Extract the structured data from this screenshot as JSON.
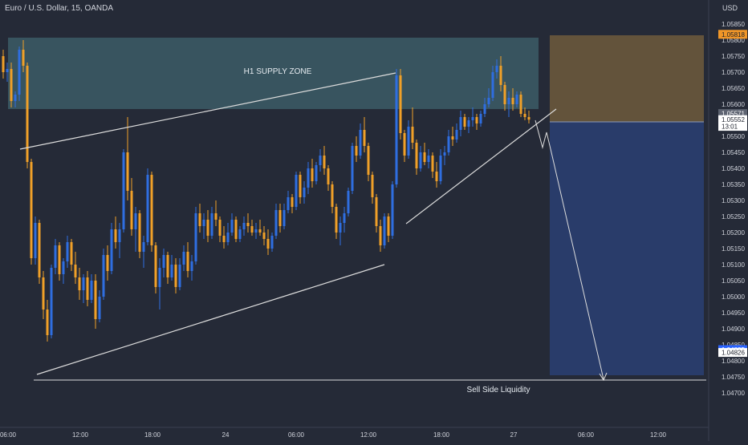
{
  "header": {
    "symbol_title": "Euro / U.S. Dollar, 15, OANDA",
    "currency": "USD"
  },
  "colors": {
    "background": "#252a37",
    "bull_candle": "#2f6ee0",
    "bear_candle": "#f0a028",
    "axis_text": "#d1d4dc",
    "supply_zone": "#3c5c66",
    "stop_zone": "#6e5a3c",
    "target_zone": "#2a3e70",
    "trend_line": "#dcdcdc",
    "price_tag_orange": "#f09628",
    "price_tag_blue": "#2962ff"
  },
  "chart_data": {
    "type": "candlestick",
    "title": "Euro / U.S. Dollar, 15, OANDA",
    "y_axis": {
      "unit": "USD",
      "ticks": [
        "1.05850",
        "1.05800",
        "1.05750",
        "1.05700",
        "1.05650",
        "1.05600",
        "1.05550",
        "1.05500",
        "1.05450",
        "1.05400",
        "1.05350",
        "1.05300",
        "1.05250",
        "1.05200",
        "1.05150",
        "1.05100",
        "1.05050",
        "1.05000",
        "1.04950",
        "1.04900",
        "1.04850",
        "1.04800",
        "1.04750",
        "1.04700"
      ],
      "range": [
        1.0469,
        1.0588
      ]
    },
    "x_axis": {
      "ticks": [
        "06:00",
        "12:00",
        "18:00",
        "24",
        "06:00",
        "12:00",
        "18:00",
        "27",
        "06:00",
        "12:00"
      ]
    },
    "price_labels": [
      {
        "text": "1.05818",
        "value": 1.05818,
        "style": "orange"
      },
      {
        "text": "1.05571",
        "value": 1.05571,
        "style": "gray"
      },
      {
        "text": "1.05552",
        "value": 1.05552,
        "style": "white"
      },
      {
        "text": "13:01",
        "value": 1.05531,
        "style": "countdown"
      },
      {
        "text": "1.04835",
        "value": 1.04835,
        "style": "blue"
      },
      {
        "text": "1.04826",
        "value": 1.04826,
        "style": "white"
      }
    ],
    "annotations": [
      {
        "text": "H1 SUPPLY ZONE",
        "kind": "zone-label"
      },
      {
        "text": "Sell Side Liquidity",
        "kind": "level-label"
      }
    ],
    "zones": [
      {
        "name": "h1-supply-zone",
        "y_top": 1.05818,
        "y_bottom": 1.0561,
        "x_from": 0,
        "x_to": 162
      },
      {
        "name": "stop-loss-zone",
        "y_top": 1.05818,
        "y_bottom": 1.05571,
        "x_from": 165,
        "x_to": 212
      },
      {
        "name": "take-profit-zone",
        "y_top": 1.05571,
        "y_bottom": 1.04835,
        "x_from": 165,
        "x_to": 212
      }
    ],
    "lines": [
      {
        "name": "upper-wedge-line",
        "points": [
          [
            5,
            1.0549
          ],
          [
            119,
            1.0571
          ]
        ]
      },
      {
        "name": "lower-wedge-line",
        "points": [
          [
            10,
            1.0484
          ],
          [
            116,
            1.0516
          ]
        ]
      },
      {
        "name": "rising-trendline",
        "points": [
          [
            122,
            1.0528
          ],
          [
            168,
            1.0561
          ]
        ]
      },
      {
        "name": "sell-side-liquidity-line",
        "points": [
          [
            8,
            1.04826
          ],
          [
            213,
            1.04826
          ]
        ]
      },
      {
        "name": "projection-path",
        "points": [
          [
            163,
            1.0558
          ],
          [
            163.5,
            1.0551
          ],
          [
            164.5,
            1.0556
          ],
          [
            165.5,
            1.055
          ],
          [
            181.5,
            1.04826
          ]
        ]
      }
    ],
    "ohlc": [
      [
        1.0575,
        1.0577,
        1.0568,
        1.057
      ],
      [
        1.057,
        1.0573,
        1.0567,
        1.0571
      ],
      [
        1.0571,
        1.0573,
        1.0559,
        1.0561
      ],
      [
        1.0561,
        1.0564,
        1.0559,
        1.0563
      ],
      [
        1.0563,
        1.0578,
        1.0561,
        1.0577
      ],
      [
        1.0577,
        1.058,
        1.057,
        1.0572
      ],
      [
        1.0572,
        1.0573,
        1.054,
        1.0542
      ],
      [
        1.0542,
        1.0543,
        1.051,
        1.0512
      ],
      [
        1.0512,
        1.0525,
        1.051,
        1.0523
      ],
      [
        1.0523,
        1.0524,
        1.0504,
        1.0506
      ],
      [
        1.0506,
        1.0508,
        1.0493,
        1.0496
      ],
      [
        1.0496,
        1.0499,
        1.0486,
        1.0488
      ],
      [
        1.0488,
        1.051,
        1.0487,
        1.0509
      ],
      [
        1.0509,
        1.0518,
        1.0507,
        1.0516
      ],
      [
        1.0516,
        1.0517,
        1.0505,
        1.0507
      ],
      [
        1.0507,
        1.0512,
        1.0504,
        1.0511
      ],
      [
        1.0511,
        1.0519,
        1.0509,
        1.0517
      ],
      [
        1.0517,
        1.0518,
        1.0508,
        1.051
      ],
      [
        1.051,
        1.0514,
        1.0504,
        1.0506
      ],
      [
        1.0506,
        1.0509,
        1.0499,
        1.0502
      ],
      [
        1.0502,
        1.0507,
        1.0498,
        1.0506
      ],
      [
        1.0506,
        1.0508,
        1.0497,
        1.0499
      ],
      [
        1.0499,
        1.0507,
        1.0498,
        1.0505
      ],
      [
        1.0505,
        1.0507,
        1.049,
        1.0493
      ],
      [
        1.0493,
        1.0502,
        1.0492,
        1.05
      ],
      [
        1.05,
        1.0515,
        1.0499,
        1.0513
      ],
      [
        1.0513,
        1.0516,
        1.0505,
        1.0508
      ],
      [
        1.0508,
        1.0523,
        1.0507,
        1.0521
      ],
      [
        1.0521,
        1.0525,
        1.0515,
        1.0517
      ],
      [
        1.0517,
        1.0523,
        1.0512,
        1.0521
      ],
      [
        1.0521,
        1.0546,
        1.052,
        1.0545
      ],
      [
        1.0545,
        1.0556,
        1.053,
        1.0533
      ],
      [
        1.0533,
        1.0537,
        1.0519,
        1.0521
      ],
      [
        1.0521,
        1.0528,
        1.0514,
        1.0526
      ],
      [
        1.0526,
        1.0527,
        1.0512,
        1.0514
      ],
      [
        1.0514,
        1.0519,
        1.0509,
        1.0517
      ],
      [
        1.0517,
        1.054,
        1.0516,
        1.0538
      ],
      [
        1.0538,
        1.0539,
        1.0514,
        1.0516
      ],
      [
        1.0516,
        1.0517,
        1.0501,
        1.0503
      ],
      [
        1.0503,
        1.0512,
        1.0496,
        1.0509
      ],
      [
        1.0509,
        1.0515,
        1.0506,
        1.0513
      ],
      [
        1.0513,
        1.0514,
        1.0504,
        1.0506
      ],
      [
        1.0506,
        1.0513,
        1.0505,
        1.051
      ],
      [
        1.051,
        1.0512,
        1.0501,
        1.0503
      ],
      [
        1.0503,
        1.0512,
        1.0502,
        1.051
      ],
      [
        1.051,
        1.0516,
        1.0508,
        1.0514
      ],
      [
        1.0514,
        1.0517,
        1.0506,
        1.0508
      ],
      [
        1.0508,
        1.0513,
        1.0505,
        1.0511
      ],
      [
        1.0511,
        1.0528,
        1.051,
        1.0526
      ],
      [
        1.0526,
        1.0529,
        1.052,
        1.0522
      ],
      [
        1.0522,
        1.0526,
        1.0518,
        1.0524
      ],
      [
        1.0524,
        1.0527,
        1.0517,
        1.0519
      ],
      [
        1.0519,
        1.0528,
        1.0518,
        1.0526
      ],
      [
        1.0526,
        1.053,
        1.0522,
        1.0524
      ],
      [
        1.0524,
        1.0525,
        1.0517,
        1.0519
      ],
      [
        1.0519,
        1.0522,
        1.0515,
        1.0517
      ],
      [
        1.0517,
        1.0523,
        1.0516,
        1.052
      ],
      [
        1.052,
        1.0526,
        1.0519,
        1.0524
      ],
      [
        1.0524,
        1.0525,
        1.0517,
        1.0518
      ],
      [
        1.0518,
        1.0522,
        1.0517,
        1.0521
      ],
      [
        1.0521,
        1.0525,
        1.0519,
        1.0523
      ],
      [
        1.0523,
        1.0526,
        1.052,
        1.0522
      ],
      [
        1.0522,
        1.0524,
        1.0519,
        1.052
      ],
      [
        1.052,
        1.0523,
        1.0518,
        1.0521
      ],
      [
        1.0521,
        1.0524,
        1.0519,
        1.052
      ],
      [
        1.052,
        1.0522,
        1.0516,
        1.0518
      ],
      [
        1.0518,
        1.0521,
        1.0513,
        1.0515
      ],
      [
        1.0515,
        1.052,
        1.0514,
        1.0519
      ],
      [
        1.0519,
        1.0529,
        1.0518,
        1.0527
      ],
      [
        1.0527,
        1.0529,
        1.052,
        1.0522
      ],
      [
        1.0522,
        1.0529,
        1.0521,
        1.0527
      ],
      [
        1.0527,
        1.0533,
        1.0526,
        1.0531
      ],
      [
        1.0531,
        1.0532,
        1.0526,
        1.0528
      ],
      [
        1.0528,
        1.0539,
        1.0527,
        1.0538
      ],
      [
        1.0538,
        1.0539,
        1.0529,
        1.0531
      ],
      [
        1.0531,
        1.0536,
        1.0529,
        1.0534
      ],
      [
        1.0534,
        1.0542,
        1.0532,
        1.054
      ],
      [
        1.054,
        1.0543,
        1.0534,
        1.0536
      ],
      [
        1.0536,
        1.0542,
        1.0535,
        1.0541
      ],
      [
        1.0541,
        1.0546,
        1.0539,
        1.0544
      ],
      [
        1.0544,
        1.0547,
        1.0538,
        1.054
      ],
      [
        1.054,
        1.0541,
        1.0533,
        1.0535
      ],
      [
        1.0535,
        1.0536,
        1.0526,
        1.0528
      ],
      [
        1.0528,
        1.0529,
        1.0518,
        1.052
      ],
      [
        1.052,
        1.0525,
        1.0516,
        1.0523
      ],
      [
        1.0523,
        1.0528,
        1.052,
        1.0526
      ],
      [
        1.0526,
        1.0534,
        1.0525,
        1.0533
      ],
      [
        1.0533,
        1.0548,
        1.0532,
        1.0547
      ],
      [
        1.0547,
        1.055,
        1.0542,
        1.0544
      ],
      [
        1.0544,
        1.0554,
        1.0543,
        1.0552
      ],
      [
        1.0552,
        1.0556,
        1.0545,
        1.0547
      ],
      [
        1.0547,
        1.0548,
        1.0536,
        1.0538
      ],
      [
        1.0538,
        1.0539,
        1.0529,
        1.0531
      ],
      [
        1.0531,
        1.0532,
        1.052,
        1.0522
      ],
      [
        1.0522,
        1.0524,
        1.0514,
        1.0516
      ],
      [
        1.0516,
        1.0526,
        1.0515,
        1.0525
      ],
      [
        1.0525,
        1.0526,
        1.0517,
        1.0519
      ],
      [
        1.0519,
        1.0536,
        1.0518,
        1.0535
      ],
      [
        1.0535,
        1.0571,
        1.0534,
        1.0569
      ],
      [
        1.0569,
        1.0571,
        1.0549,
        1.0551
      ],
      [
        1.0551,
        1.0552,
        1.0542,
        1.0544
      ],
      [
        1.0544,
        1.0555,
        1.0543,
        1.0553
      ],
      [
        1.0553,
        1.0559,
        1.0546,
        1.0548
      ],
      [
        1.0548,
        1.0549,
        1.0538,
        1.054
      ],
      [
        1.054,
        1.0547,
        1.0539,
        1.0545
      ],
      [
        1.0545,
        1.0548,
        1.0541,
        1.0542
      ],
      [
        1.0542,
        1.0546,
        1.054,
        1.0544
      ],
      [
        1.0544,
        1.0545,
        1.0537,
        1.0539
      ],
      [
        1.0539,
        1.0542,
        1.0534,
        1.0536
      ],
      [
        1.0536,
        1.0546,
        1.0535,
        1.0544
      ],
      [
        1.0544,
        1.0547,
        1.0541,
        1.0545
      ],
      [
        1.0545,
        1.0552,
        1.0544,
        1.055
      ],
      [
        1.055,
        1.0553,
        1.0547,
        1.0549
      ],
      [
        1.0549,
        1.0554,
        1.0548,
        1.0552
      ],
      [
        1.0552,
        1.0558,
        1.055,
        1.0556
      ],
      [
        1.0556,
        1.0557,
        1.0552,
        1.0553
      ],
      [
        1.0553,
        1.0556,
        1.0551,
        1.0555
      ],
      [
        1.0555,
        1.0559,
        1.0553,
        1.0556
      ],
      [
        1.0556,
        1.0557,
        1.0552,
        1.0554
      ],
      [
        1.0554,
        1.0558,
        1.0553,
        1.0557
      ],
      [
        1.0557,
        1.0562,
        1.0556,
        1.056
      ],
      [
        1.056,
        1.0565,
        1.0559,
        1.0562
      ],
      [
        1.0562,
        1.0572,
        1.0561,
        1.057
      ],
      [
        1.057,
        1.0574,
        1.0568,
        1.0572
      ],
      [
        1.0572,
        1.0575,
        1.0564,
        1.0566
      ],
      [
        1.0566,
        1.0567,
        1.0558,
        1.056
      ],
      [
        1.056,
        1.0564,
        1.0556,
        1.0562
      ],
      [
        1.0562,
        1.0565,
        1.0558,
        1.056
      ],
      [
        1.056,
        1.0564,
        1.0559,
        1.0563
      ],
      [
        1.0563,
        1.0564,
        1.0556,
        1.0557
      ],
      [
        1.0557,
        1.0559,
        1.0555,
        1.0556
      ],
      [
        1.0556,
        1.0558,
        1.0554,
        1.05552
      ]
    ]
  }
}
